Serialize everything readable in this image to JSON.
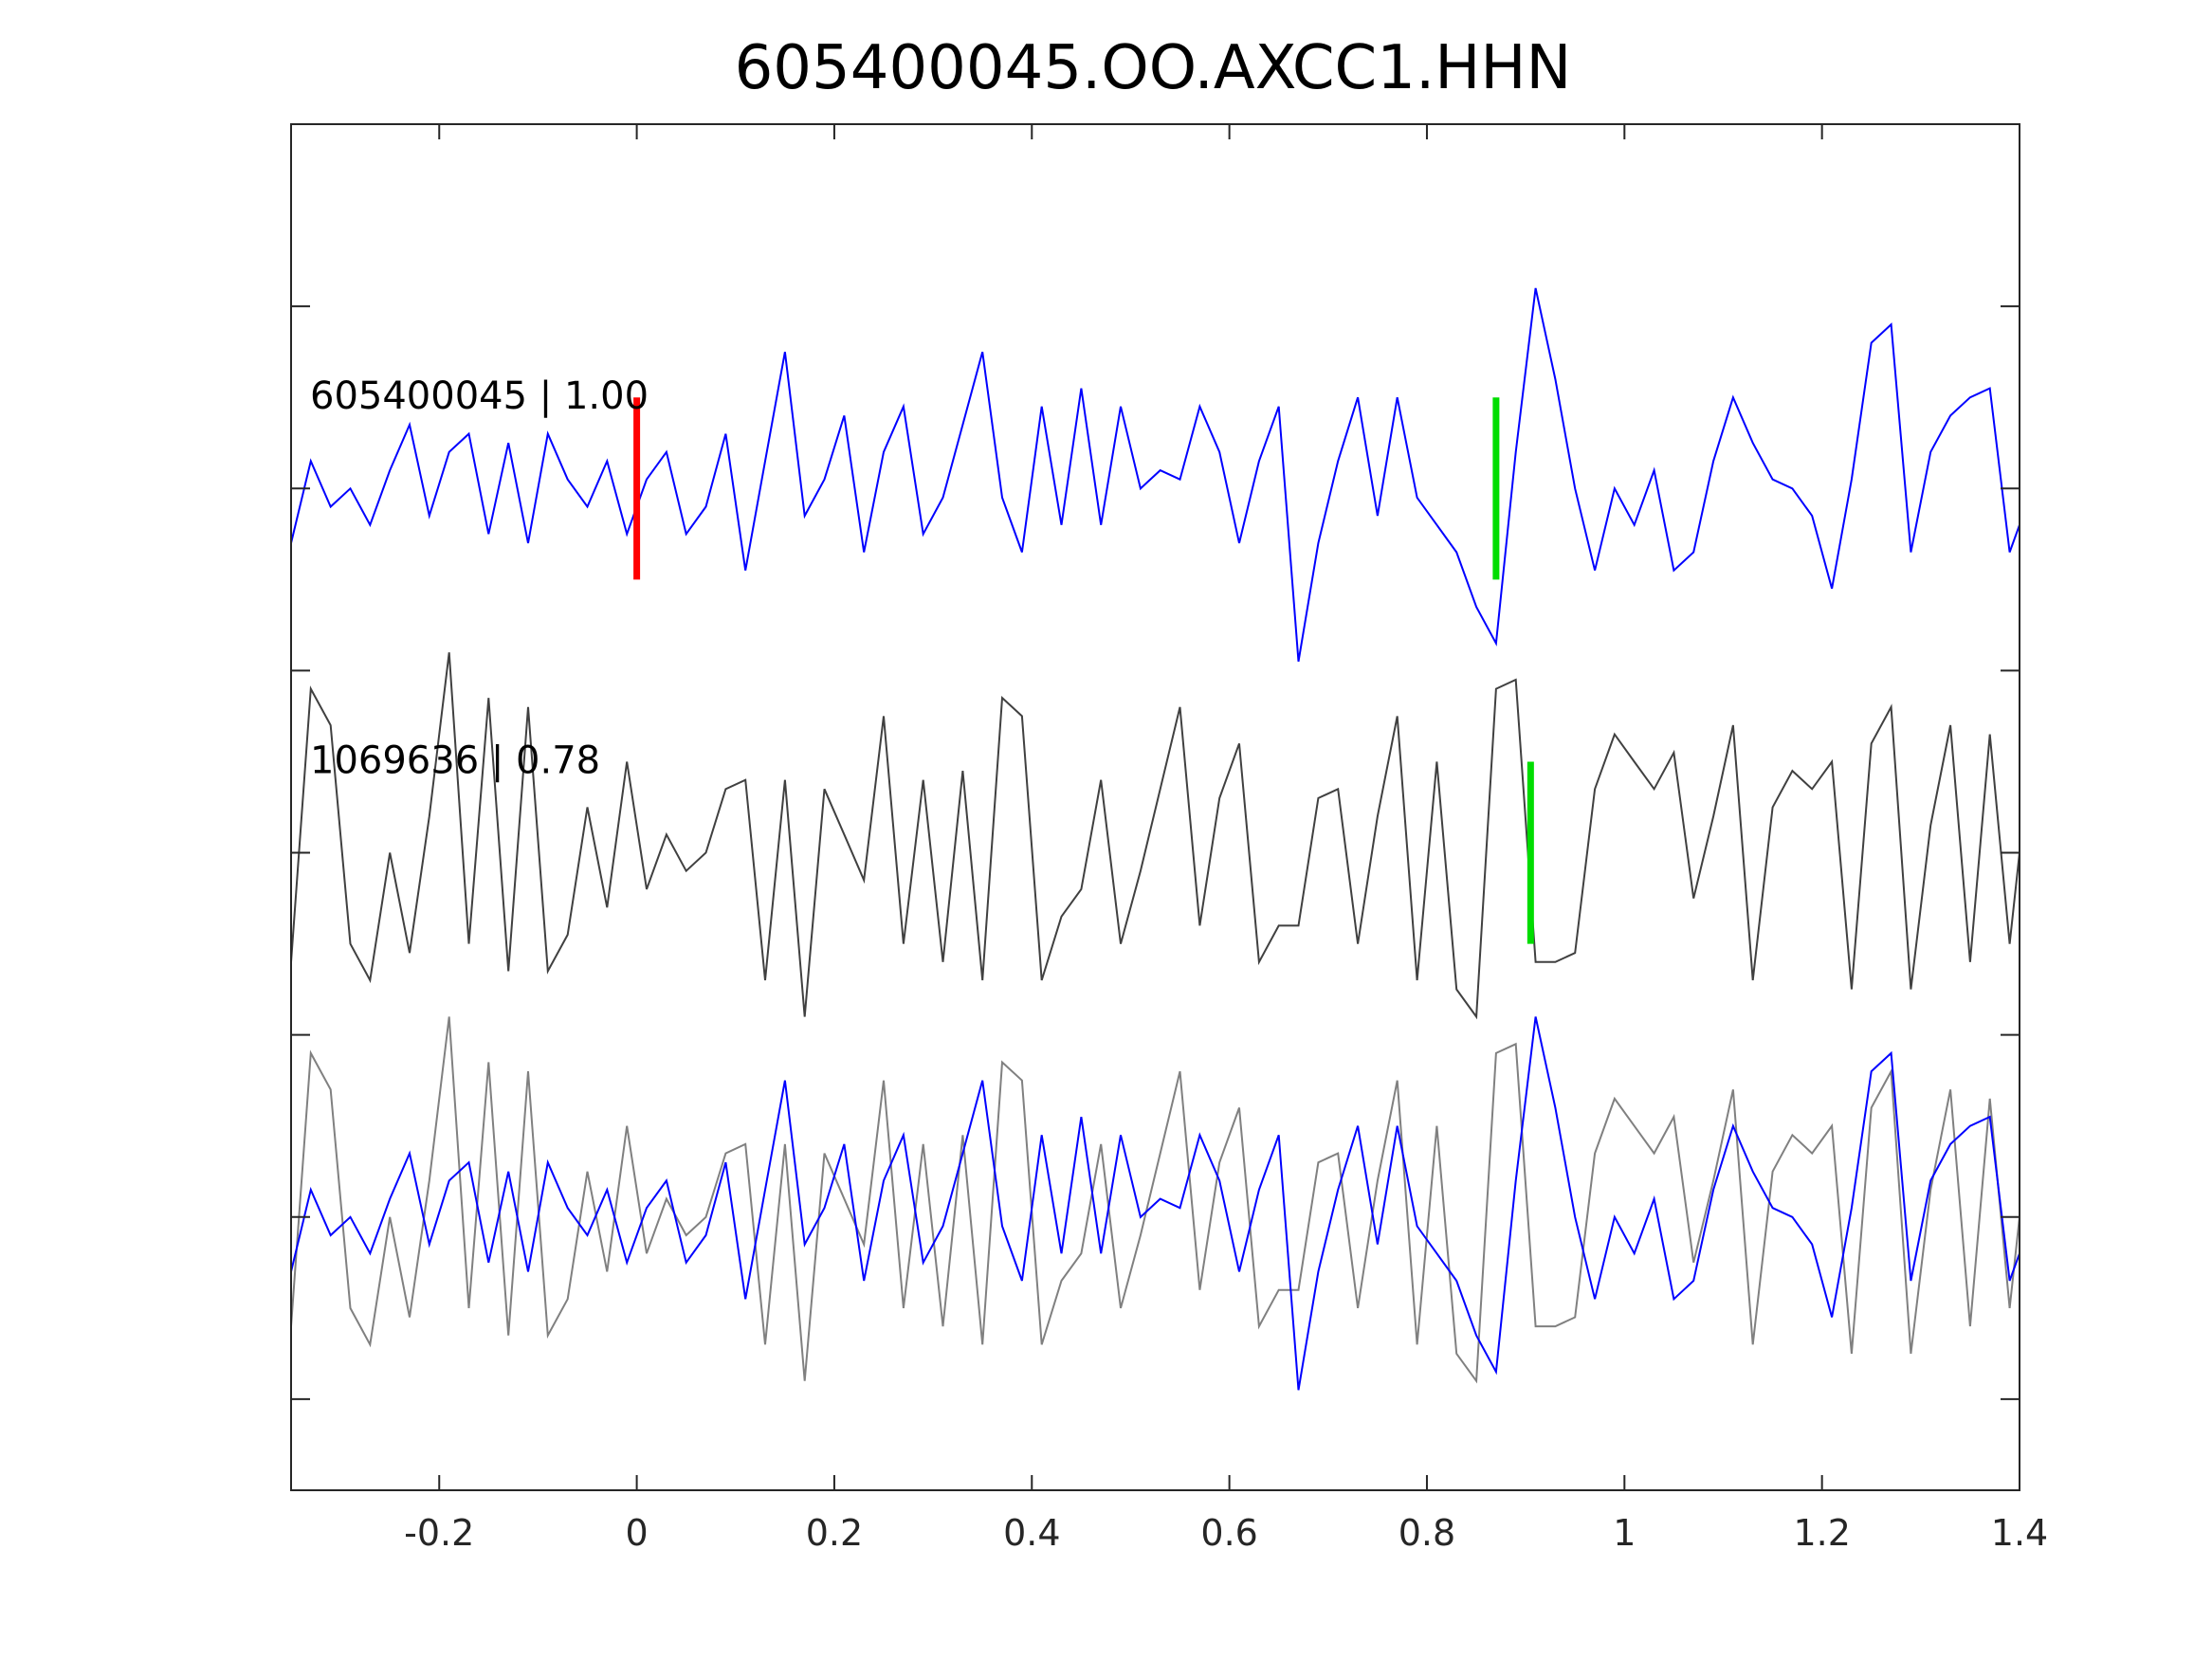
{
  "title": "605400045.OO.AXCC1.HHN",
  "colors": {
    "master": "#0000ff",
    "neighbor": "#404040",
    "overlay_neighbor": "#808080",
    "pick_master": "#ff0000",
    "pick_picks": "#00dd00",
    "axis": "#262626"
  },
  "chart_data": {
    "type": "line",
    "title": "605400045.OO.AXCC1.HHN",
    "xlabel": "",
    "ylabel": "",
    "xlim": [
      -0.35,
      1.4
    ],
    "xticks": [
      -0.2,
      0,
      0.2,
      0.4,
      0.6,
      0.8,
      1,
      1.2,
      1.4
    ],
    "xtick_labels": [
      "-0.2",
      "0",
      "0.2",
      "0.4",
      "0.6",
      "0.8",
      "1",
      "1.2",
      "1.4"
    ],
    "ylim": [
      -3.5,
      4
    ],
    "yticks": [
      -3,
      -2,
      -1,
      0,
      1,
      2,
      3
    ],
    "ytick_labels": [],
    "grid": false,
    "series": [
      {
        "name": "605400045 | 1.00",
        "label": "605400045 | 1.00",
        "baseline": 2,
        "color": "#0000ff",
        "pick_x": 0,
        "pick_color": "#ff0000",
        "second_pick_x": 0.87,
        "second_pick_color": "#00dd00",
        "x": [
          -0.35,
          -0.33,
          -0.31,
          -0.29,
          -0.27,
          -0.25,
          -0.23,
          -0.21,
          -0.19,
          -0.17,
          -0.15,
          -0.13,
          -0.11,
          -0.09,
          -0.07,
          -0.05,
          -0.03,
          -0.01,
          0.01,
          0.03,
          0.05,
          0.07,
          0.09,
          0.11,
          0.13,
          0.15,
          0.17,
          0.19,
          0.21,
          0.23,
          0.25,
          0.27,
          0.29,
          0.31,
          0.33,
          0.35,
          0.37,
          0.39,
          0.41,
          0.43,
          0.45,
          0.47,
          0.49,
          0.51,
          0.53,
          0.55,
          0.57,
          0.59,
          0.61,
          0.63,
          0.65,
          0.67,
          0.69,
          0.71,
          0.73,
          0.75,
          0.77,
          0.79,
          0.81,
          0.83,
          0.85,
          0.87,
          0.89,
          0.91,
          0.93,
          0.95,
          0.97,
          0.99,
          1.01,
          1.03,
          1.05,
          1.07,
          1.09,
          1.11,
          1.13,
          1.15,
          1.17,
          1.19,
          1.21,
          1.23,
          1.25,
          1.27,
          1.29,
          1.31,
          1.33,
          1.35,
          1.37,
          1.39,
          1.4
        ],
        "y": [
          -0.3,
          0.15,
          -0.1,
          0.0,
          -0.2,
          0.1,
          0.35,
          -0.15,
          0.2,
          0.3,
          -0.25,
          0.25,
          -0.3,
          0.3,
          0.05,
          -0.1,
          0.15,
          -0.25,
          0.05,
          0.2,
          -0.25,
          -0.1,
          0.3,
          -0.45,
          0.15,
          0.75,
          -0.15,
          0.05,
          0.4,
          -0.35,
          0.2,
          0.45,
          -0.25,
          -0.05,
          0.35,
          0.75,
          -0.05,
          -0.35,
          0.45,
          -0.2,
          0.55,
          -0.2,
          0.45,
          0.0,
          0.1,
          0.05,
          0.45,
          0.2,
          -0.3,
          0.15,
          0.45,
          -0.95,
          -0.3,
          0.15,
          0.5,
          -0.15,
          0.5,
          -0.05,
          -0.2,
          -0.35,
          -0.65,
          -0.85,
          0.2,
          1.1,
          0.6,
          0.0,
          -0.45,
          0.0,
          -0.2,
          0.1,
          -0.45,
          -0.35,
          0.15,
          0.5,
          0.25,
          0.05,
          0.0,
          -0.15,
          -0.55,
          0.05,
          0.8,
          0.9,
          -0.35,
          0.2,
          0.4,
          0.5,
          0.55,
          -0.35,
          -0.2
        ]
      },
      {
        "name": "1069636 | 0.78",
        "label": "1069636 | 0.78",
        "baseline": 0,
        "color": "#404040",
        "second_pick_x": 0.905,
        "second_pick_color": "#00dd00",
        "x": [
          -0.35,
          -0.33,
          -0.31,
          -0.29,
          -0.27,
          -0.25,
          -0.23,
          -0.21,
          -0.19,
          -0.17,
          -0.15,
          -0.13,
          -0.11,
          -0.09,
          -0.07,
          -0.05,
          -0.03,
          -0.01,
          0.01,
          0.03,
          0.05,
          0.07,
          0.09,
          0.11,
          0.13,
          0.15,
          0.17,
          0.19,
          0.21,
          0.23,
          0.25,
          0.27,
          0.29,
          0.31,
          0.33,
          0.35,
          0.37,
          0.39,
          0.41,
          0.43,
          0.45,
          0.47,
          0.49,
          0.51,
          0.53,
          0.55,
          0.57,
          0.59,
          0.61,
          0.63,
          0.65,
          0.67,
          0.69,
          0.71,
          0.73,
          0.75,
          0.77,
          0.79,
          0.81,
          0.83,
          0.85,
          0.87,
          0.89,
          0.91,
          0.93,
          0.95,
          0.97,
          0.99,
          1.01,
          1.03,
          1.05,
          1.07,
          1.09,
          1.11,
          1.13,
          1.15,
          1.17,
          1.19,
          1.21,
          1.23,
          1.25,
          1.27,
          1.29,
          1.31,
          1.33,
          1.35,
          1.37,
          1.39,
          1.4
        ],
        "y": [
          -0.6,
          0.9,
          0.7,
          -0.5,
          -0.7,
          0.0,
          -0.55,
          0.2,
          1.1,
          -0.5,
          0.85,
          -0.65,
          0.8,
          -0.65,
          -0.45,
          0.25,
          -0.3,
          0.5,
          -0.2,
          0.1,
          -0.1,
          0.0,
          0.35,
          0.4,
          -0.7,
          0.4,
          -0.9,
          0.35,
          0.1,
          -0.15,
          0.75,
          -0.5,
          0.4,
          -0.6,
          0.45,
          -0.7,
          0.85,
          0.75,
          -0.7,
          -0.35,
          -0.2,
          0.4,
          -0.5,
          -0.1,
          0.35,
          0.8,
          -0.4,
          0.3,
          0.6,
          -0.6,
          -0.4,
          -0.4,
          0.3,
          0.35,
          -0.5,
          0.2,
          0.75,
          -0.7,
          0.5,
          -0.75,
          -0.9,
          0.9,
          0.95,
          -0.6,
          -0.6,
          -0.55,
          0.35,
          0.65,
          0.5,
          0.35,
          0.55,
          -0.25,
          0.2,
          0.7,
          -0.7,
          0.25,
          0.45,
          0.35,
          0.5,
          -0.75,
          0.6,
          0.8,
          -0.75,
          0.15,
          0.7,
          -0.6,
          0.65,
          -0.5,
          0.0
        ]
      }
    ],
    "overlay": {
      "baseline": -2,
      "description_source": "overlay of both traces",
      "master_color": "#0000ff",
      "neighbor_color": "#808080"
    }
  }
}
